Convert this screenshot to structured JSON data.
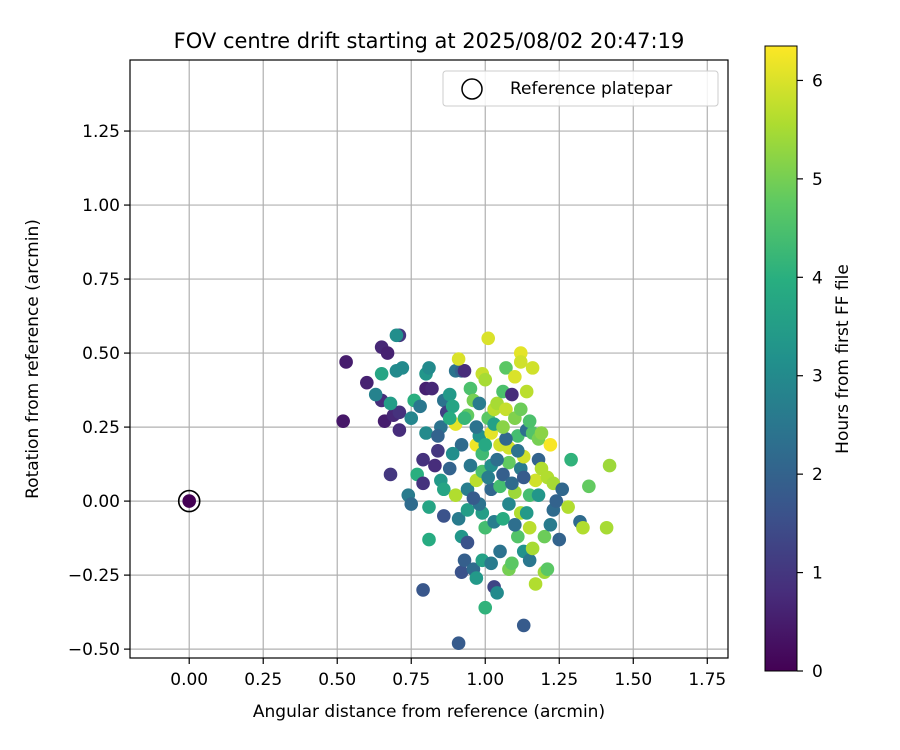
{
  "chart_data": {
    "type": "scatter",
    "title": "FOV centre drift starting at 2025/08/02 20:47:19",
    "xlabel": "Angular distance from reference (arcmin)",
    "ylabel": "Rotation from reference (arcmin)",
    "xlim": [
      -0.2,
      1.82
    ],
    "ylim": [
      -0.53,
      1.49
    ],
    "xticks": [
      "0.00",
      "0.25",
      "0.50",
      "0.75",
      "1.00",
      "1.25",
      "1.50",
      "1.75"
    ],
    "xtick_values": [
      0,
      0.25,
      0.5,
      0.75,
      1.0,
      1.25,
      1.5,
      1.75
    ],
    "yticks": [
      "−0.50",
      "−0.25",
      "0.00",
      "0.25",
      "0.50",
      "0.75",
      "1.00",
      "1.25"
    ],
    "ytick_values": [
      -0.5,
      -0.25,
      0,
      0.25,
      0.5,
      0.75,
      1.0,
      1.25
    ],
    "grid": true,
    "legend": {
      "placement": "top-right",
      "entries": [
        "Reference platepar"
      ]
    },
    "reference_point": {
      "x": 0.0,
      "y": 0.0,
      "hours": 0
    },
    "colorbar": {
      "label": "Hours from first FF file",
      "colormap": "viridis",
      "range": [
        0,
        6.35
      ],
      "ticks": [
        "0",
        "1",
        "2",
        "3",
        "4",
        "5",
        "6"
      ],
      "tick_values": [
        0,
        1,
        2,
        3,
        4,
        5,
        6
      ]
    },
    "points": [
      {
        "x": 0.53,
        "y": 0.47,
        "h": 0.5
      },
      {
        "x": 0.52,
        "y": 0.27,
        "h": 0.4
      },
      {
        "x": 0.6,
        "y": 0.4,
        "h": 0.6
      },
      {
        "x": 0.65,
        "y": 0.52,
        "h": 0.7
      },
      {
        "x": 0.67,
        "y": 0.5,
        "h": 0.6
      },
      {
        "x": 0.71,
        "y": 0.56,
        "h": 1.0
      },
      {
        "x": 0.65,
        "y": 0.34,
        "h": 0.8
      },
      {
        "x": 0.63,
        "y": 0.36,
        "h": 2.8
      },
      {
        "x": 0.66,
        "y": 0.27,
        "h": 0.5
      },
      {
        "x": 0.69,
        "y": 0.29,
        "h": 0.7
      },
      {
        "x": 0.71,
        "y": 0.24,
        "h": 0.8
      },
      {
        "x": 0.71,
        "y": 0.3,
        "h": 0.9
      },
      {
        "x": 0.7,
        "y": 0.44,
        "h": 3.0
      },
      {
        "x": 0.72,
        "y": 0.45,
        "h": 3.0
      },
      {
        "x": 0.7,
        "y": 0.56,
        "h": 3.1
      },
      {
        "x": 0.68,
        "y": 0.33,
        "h": 3.5
      },
      {
        "x": 0.65,
        "y": 0.43,
        "h": 3.7
      },
      {
        "x": 0.68,
        "y": 0.09,
        "h": 1.0
      },
      {
        "x": 0.74,
        "y": 0.02,
        "h": 2.6
      },
      {
        "x": 0.75,
        "y": -0.01,
        "h": 2.2
      },
      {
        "x": 0.75,
        "y": 0.28,
        "h": 2.9
      },
      {
        "x": 0.76,
        "y": 0.34,
        "h": 4.0
      },
      {
        "x": 0.78,
        "y": 0.32,
        "h": 2.5
      },
      {
        "x": 0.8,
        "y": 0.38,
        "h": 0.6
      },
      {
        "x": 0.82,
        "y": 0.38,
        "h": 0.7
      },
      {
        "x": 0.8,
        "y": 0.43,
        "h": 3.3
      },
      {
        "x": 0.81,
        "y": 0.45,
        "h": 3.0
      },
      {
        "x": 0.8,
        "y": 0.23,
        "h": 3.0
      },
      {
        "x": 0.79,
        "y": 0.14,
        "h": 0.9
      },
      {
        "x": 0.77,
        "y": 0.09,
        "h": 4.0
      },
      {
        "x": 0.79,
        "y": 0.06,
        "h": 0.9
      },
      {
        "x": 0.79,
        "y": -0.3,
        "h": 1.7
      },
      {
        "x": 0.81,
        "y": -0.13,
        "h": 3.9
      },
      {
        "x": 0.81,
        "y": -0.02,
        "h": 3.7
      },
      {
        "x": 0.84,
        "y": 0.17,
        "h": 1.0
      },
      {
        "x": 0.83,
        "y": 0.12,
        "h": 0.8
      },
      {
        "x": 0.85,
        "y": 0.07,
        "h": 3.4
      },
      {
        "x": 0.86,
        "y": 0.04,
        "h": 3.7
      },
      {
        "x": 0.85,
        "y": 0.25,
        "h": 2.4
      },
      {
        "x": 0.86,
        "y": 0.34,
        "h": 2.4
      },
      {
        "x": 0.87,
        "y": 0.3,
        "h": 1.2
      },
      {
        "x": 0.88,
        "y": 0.36,
        "h": 3.4
      },
      {
        "x": 0.89,
        "y": 0.32,
        "h": 3.7
      },
      {
        "x": 0.86,
        "y": -0.05,
        "h": 1.6
      },
      {
        "x": 0.88,
        "y": 0.11,
        "h": 2.0
      },
      {
        "x": 0.9,
        "y": 0.44,
        "h": 2.4
      },
      {
        "x": 0.92,
        "y": 0.44,
        "h": 2.0
      },
      {
        "x": 0.93,
        "y": 0.44,
        "h": 0.8
      },
      {
        "x": 0.91,
        "y": 0.48,
        "h": 6.0
      },
      {
        "x": 0.9,
        "y": 0.26,
        "h": 6.1
      },
      {
        "x": 0.9,
        "y": 0.02,
        "h": 5.6
      },
      {
        "x": 0.91,
        "y": -0.06,
        "h": 2.6
      },
      {
        "x": 0.92,
        "y": -0.12,
        "h": 3.3
      },
      {
        "x": 0.92,
        "y": -0.24,
        "h": 1.6
      },
      {
        "x": 0.93,
        "y": -0.2,
        "h": 1.9
      },
      {
        "x": 0.91,
        "y": -0.48,
        "h": 1.8
      },
      {
        "x": 0.94,
        "y": -0.14,
        "h": 1.6
      },
      {
        "x": 0.94,
        "y": -0.03,
        "h": 3.5
      },
      {
        "x": 0.94,
        "y": 0.04,
        "h": 2.7
      },
      {
        "x": 0.94,
        "y": 0.29,
        "h": 4.8
      },
      {
        "x": 0.95,
        "y": 0.38,
        "h": 4.5
      },
      {
        "x": 0.96,
        "y": 0.34,
        "h": 5.0
      },
      {
        "x": 0.97,
        "y": 0.19,
        "h": 6.2
      },
      {
        "x": 0.97,
        "y": 0.07,
        "h": 5.7
      },
      {
        "x": 0.96,
        "y": -0.23,
        "h": 2.2
      },
      {
        "x": 0.97,
        "y": -0.26,
        "h": 3.4
      },
      {
        "x": 0.99,
        "y": 0.43,
        "h": 5.8
      },
      {
        "x": 1.0,
        "y": 0.41,
        "h": 5.5
      },
      {
        "x": 0.98,
        "y": 0.22,
        "h": 3.2
      },
      {
        "x": 0.99,
        "y": 0.16,
        "h": 4.3
      },
      {
        "x": 0.99,
        "y": 0.1,
        "h": 4.5
      },
      {
        "x": 0.99,
        "y": -0.04,
        "h": 3.5
      },
      {
        "x": 1.0,
        "y": -0.09,
        "h": 4.4
      },
      {
        "x": 0.99,
        "y": -0.2,
        "h": 3.6
      },
      {
        "x": 1.0,
        "y": -0.36,
        "h": 4.1
      },
      {
        "x": 1.01,
        "y": 0.55,
        "h": 6.0
      },
      {
        "x": 1.01,
        "y": 0.28,
        "h": 4.7
      },
      {
        "x": 1.02,
        "y": 0.23,
        "h": 6.1
      },
      {
        "x": 1.02,
        "y": 0.12,
        "h": 3.1
      },
      {
        "x": 1.02,
        "y": 0.04,
        "h": 2.1
      },
      {
        "x": 1.03,
        "y": -0.07,
        "h": 2.7
      },
      {
        "x": 1.03,
        "y": -0.29,
        "h": 1.3
      },
      {
        "x": 1.04,
        "y": -0.31,
        "h": 3.0
      },
      {
        "x": 1.03,
        "y": 0.31,
        "h": 5.7
      },
      {
        "x": 1.04,
        "y": 0.33,
        "h": 5.5
      },
      {
        "x": 1.05,
        "y": 0.19,
        "h": 5.9
      },
      {
        "x": 1.05,
        "y": 0.05,
        "h": 4.4
      },
      {
        "x": 1.05,
        "y": -0.17,
        "h": 2.4
      },
      {
        "x": 1.06,
        "y": 0.37,
        "h": 4.5
      },
      {
        "x": 1.07,
        "y": 0.45,
        "h": 4.7
      },
      {
        "x": 1.07,
        "y": 0.31,
        "h": 5.8
      },
      {
        "x": 1.08,
        "y": 0.18,
        "h": 5.9
      },
      {
        "x": 1.08,
        "y": 0.13,
        "h": 4.8
      },
      {
        "x": 1.08,
        "y": -0.01,
        "h": 2.9
      },
      {
        "x": 1.08,
        "y": -0.23,
        "h": 5.0
      },
      {
        "x": 1.09,
        "y": -0.21,
        "h": 4.7
      },
      {
        "x": 1.09,
        "y": 0.36,
        "h": 0.8
      },
      {
        "x": 1.1,
        "y": 0.42,
        "h": 6.0
      },
      {
        "x": 1.1,
        "y": 0.28,
        "h": 5.1
      },
      {
        "x": 1.1,
        "y": 0.03,
        "h": 5.4
      },
      {
        "x": 1.11,
        "y": -0.12,
        "h": 4.6
      },
      {
        "x": 1.11,
        "y": 0.22,
        "h": 4.4
      },
      {
        "x": 1.12,
        "y": 0.5,
        "h": 6.1
      },
      {
        "x": 1.12,
        "y": 0.47,
        "h": 5.9
      },
      {
        "x": 1.12,
        "y": 0.11,
        "h": 2.6
      },
      {
        "x": 1.12,
        "y": -0.04,
        "h": 5.6
      },
      {
        "x": 1.13,
        "y": -0.17,
        "h": 3.2
      },
      {
        "x": 1.13,
        "y": -0.42,
        "h": 1.8
      },
      {
        "x": 1.13,
        "y": 0.15,
        "h": 5.9
      },
      {
        "x": 1.14,
        "y": 0.37,
        "h": 5.7
      },
      {
        "x": 1.14,
        "y": 0.24,
        "h": 2.3
      },
      {
        "x": 1.15,
        "y": 0.02,
        "h": 4.4
      },
      {
        "x": 1.15,
        "y": -0.09,
        "h": 5.7
      },
      {
        "x": 1.15,
        "y": -0.2,
        "h": 2.5
      },
      {
        "x": 1.16,
        "y": 0.45,
        "h": 5.9
      },
      {
        "x": 1.16,
        "y": 0.23,
        "h": 4.6
      },
      {
        "x": 1.16,
        "y": -0.16,
        "h": 5.5
      },
      {
        "x": 1.17,
        "y": 0.07,
        "h": 5.9
      },
      {
        "x": 1.17,
        "y": -0.28,
        "h": 5.6
      },
      {
        "x": 1.18,
        "y": 0.21,
        "h": 5.0
      },
      {
        "x": 1.18,
        "y": 0.14,
        "h": 2.0
      },
      {
        "x": 1.19,
        "y": 0.11,
        "h": 5.6
      },
      {
        "x": 1.2,
        "y": -0.12,
        "h": 4.9
      },
      {
        "x": 1.2,
        "y": -0.24,
        "h": 5.4
      },
      {
        "x": 1.21,
        "y": 0.08,
        "h": 5.6
      },
      {
        "x": 1.21,
        "y": -0.23,
        "h": 4.7
      },
      {
        "x": 1.22,
        "y": 0.19,
        "h": 6.3
      },
      {
        "x": 1.22,
        "y": -0.08,
        "h": 2.6
      },
      {
        "x": 1.23,
        "y": 0.06,
        "h": 5.5
      },
      {
        "x": 1.23,
        "y": -0.03,
        "h": 2.2
      },
      {
        "x": 1.24,
        "y": 0.0,
        "h": 2.0
      },
      {
        "x": 1.25,
        "y": -0.13,
        "h": 2.0
      },
      {
        "x": 1.26,
        "y": 0.04,
        "h": 2.1
      },
      {
        "x": 1.28,
        "y": -0.02,
        "h": 5.6
      },
      {
        "x": 1.29,
        "y": 0.14,
        "h": 4.1
      },
      {
        "x": 1.32,
        "y": -0.07,
        "h": 2.2
      },
      {
        "x": 1.33,
        "y": -0.09,
        "h": 5.6
      },
      {
        "x": 1.35,
        "y": 0.05,
        "h": 4.8
      },
      {
        "x": 1.41,
        "y": -0.09,
        "h": 5.5
      },
      {
        "x": 1.42,
        "y": 0.12,
        "h": 5.4
      },
      {
        "x": 0.97,
        "y": 0.25,
        "h": 2.4
      },
      {
        "x": 0.98,
        "y": 0.33,
        "h": 2.6
      },
      {
        "x": 1.0,
        "y": 0.19,
        "h": 3.8
      },
      {
        "x": 1.01,
        "y": 0.08,
        "h": 2.7
      },
      {
        "x": 1.04,
        "y": 0.14,
        "h": 2.3
      },
      {
        "x": 1.06,
        "y": 0.09,
        "h": 1.9
      },
      {
        "x": 1.07,
        "y": 0.21,
        "h": 2.1
      },
      {
        "x": 1.09,
        "y": 0.06,
        "h": 2.2
      },
      {
        "x": 1.11,
        "y": 0.17,
        "h": 2.4
      },
      {
        "x": 1.13,
        "y": 0.08,
        "h": 1.8
      },
      {
        "x": 0.92,
        "y": 0.19,
        "h": 2.2
      },
      {
        "x": 0.95,
        "y": 0.12,
        "h": 2.5
      },
      {
        "x": 0.89,
        "y": 0.16,
        "h": 3.1
      },
      {
        "x": 0.98,
        "y": -0.01,
        "h": 2.4
      },
      {
        "x": 1.06,
        "y": -0.06,
        "h": 3.9
      },
      {
        "x": 1.02,
        "y": -0.21,
        "h": 2.6
      },
      {
        "x": 1.14,
        "y": -0.04,
        "h": 3.4
      },
      {
        "x": 1.18,
        "y": 0.02,
        "h": 3.3
      },
      {
        "x": 0.88,
        "y": 0.28,
        "h": 3.9
      },
      {
        "x": 0.93,
        "y": 0.28,
        "h": 4.2
      },
      {
        "x": 1.03,
        "y": 0.26,
        "h": 3.6
      },
      {
        "x": 1.12,
        "y": 0.31,
        "h": 4.9
      },
      {
        "x": 1.06,
        "y": 0.25,
        "h": 5.2
      },
      {
        "x": 1.15,
        "y": 0.27,
        "h": 4.5
      },
      {
        "x": 1.19,
        "y": 0.23,
        "h": 5.2
      },
      {
        "x": 0.96,
        "y": 0.01,
        "h": 1.8
      },
      {
        "x": 1.1,
        "y": -0.08,
        "h": 2.3
      },
      {
        "x": 0.84,
        "y": 0.22,
        "h": 2.0
      }
    ]
  }
}
